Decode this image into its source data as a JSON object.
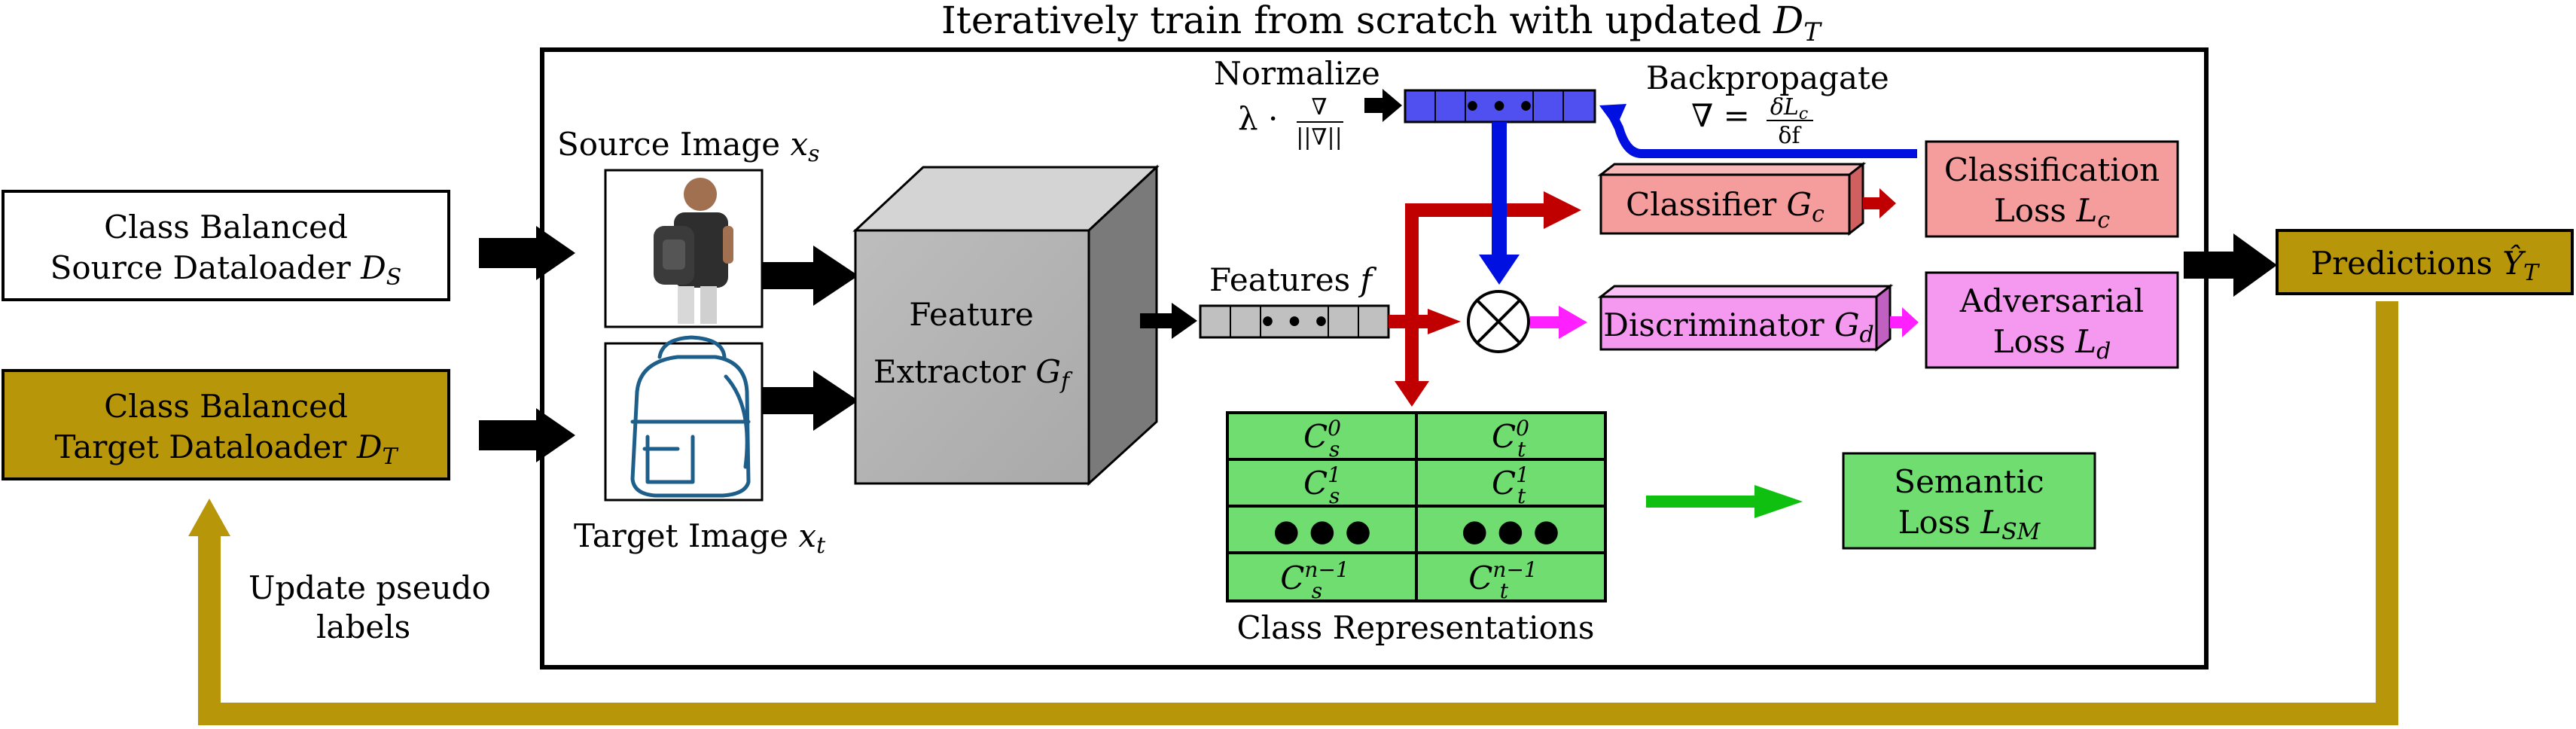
{
  "title": {
    "prefix": "Iteratively train from scratch with updated",
    "var": "D",
    "sub": "T"
  },
  "source_loader": {
    "line1": "Class Balanced",
    "line2": "Source Dataloader",
    "var": "D",
    "sub": "S"
  },
  "target_loader": {
    "line1": "Class Balanced",
    "line2": "Target Dataloader",
    "var": "D",
    "sub": "T"
  },
  "source_image": {
    "label": "Source Image",
    "var": "x",
    "sub": "s"
  },
  "target_image": {
    "label": "Target Image",
    "var": "x",
    "sub": "t"
  },
  "feature_extractor": {
    "line1": "Feature",
    "line2": "Extractor",
    "var": "G",
    "sub": "f"
  },
  "features": {
    "label": "Features",
    "var": "f",
    "cells_dots": "• • •"
  },
  "normalize": {
    "label": "Normalize",
    "formula_prefix": "λ ·",
    "numerator": "∇",
    "denominator": "||∇||"
  },
  "backprop": {
    "label": "Backpropagate",
    "lhs": "∇ =",
    "numerator": "δL",
    "numerator_sub": "c",
    "denominator": "δf",
    "cells_dots": "• • •"
  },
  "classifier": {
    "label": "Classifier",
    "var": "G",
    "sub": "c"
  },
  "classification_loss": {
    "line1": "Classification",
    "line2": "Loss",
    "var": "L",
    "sub": "c"
  },
  "discriminator": {
    "label": "Discriminator",
    "var": "G",
    "sub": "d"
  },
  "adversarial_loss": {
    "line1": "Adversarial",
    "line2": "Loss",
    "var": "L",
    "sub": "d"
  },
  "predictions": {
    "label": "Predictions",
    "var": "Ŷ",
    "sub": "T"
  },
  "class_table": {
    "caption": "Class Representations",
    "rows": [
      {
        "s": "C",
        "s_sup": "0",
        "s_sub": "s",
        "t": "C",
        "t_sup": "0",
        "t_sub": "t"
      },
      {
        "s": "C",
        "s_sup": "1",
        "s_sub": "s",
        "t": "C",
        "t_sup": "1",
        "t_sub": "t"
      },
      {
        "dots": "● ● ●"
      },
      {
        "s": "C",
        "s_sup": "n−1",
        "s_sub": "s",
        "t": "C",
        "t_sup": "n−1",
        "t_sub": "t"
      }
    ]
  },
  "semantic_loss": {
    "line1": "Semantic",
    "line2": "Loss",
    "var": "L",
    "sub": "SM"
  },
  "feedback": {
    "line1": "Update pseudo",
    "line2": "labels"
  },
  "colors": {
    "gold": "#b8960a",
    "red_arrow": "#c00000",
    "blue_arrow": "#0010e0",
    "magenta": "#ff20ff",
    "green_arrow": "#10c010",
    "classifier_fill": "#f59c9c",
    "discriminator_fill": "#f598f0",
    "table_fill": "#70dd70",
    "features_fill": "#c0c0c0",
    "grad_fill": "#5050f0"
  }
}
